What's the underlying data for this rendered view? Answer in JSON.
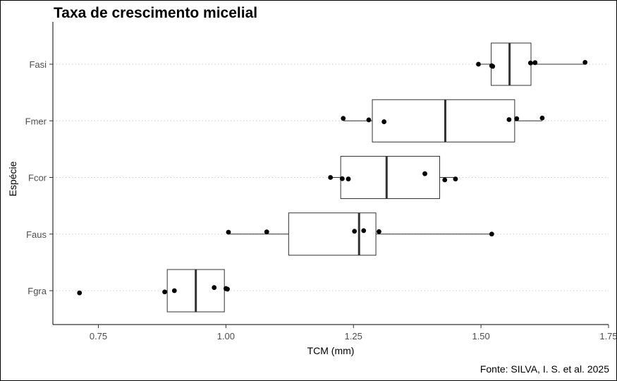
{
  "chart_data": {
    "type": "boxplot",
    "orientation": "horizontal",
    "title": "Taxa de crescimento micelial",
    "xlabel": "TCM (mm)",
    "ylabel": "Espécie",
    "caption": "Fonte: SILVA, I. S. et al. 2025",
    "xlim": [
      0.667,
      1.75
    ],
    "xticks": [
      0.75,
      1.0,
      1.25,
      1.5,
      1.75
    ],
    "xtick_labels": [
      "0.75",
      "1.00",
      "1.25",
      "1.50",
      "1.75"
    ],
    "categories": [
      "Fasi",
      "Fmer",
      "Fcor",
      "Faus",
      "Fgra"
    ],
    "grid": "horizontal dotted",
    "boxes": [
      {
        "category": "Fasi",
        "whisker_low": 1.5,
        "q1": 1.52,
        "median": 1.556,
        "q3": 1.598,
        "whisker_high": 1.704
      },
      {
        "category": "Fmer",
        "whisker_low": 1.23,
        "q1": 1.287,
        "median": 1.43,
        "q3": 1.566,
        "whisker_high": 1.62
      },
      {
        "category": "Fcor",
        "whisker_low": 1.205,
        "q1": 1.225,
        "median": 1.315,
        "q3": 1.419,
        "whisker_high": 1.45
      },
      {
        "category": "Faus",
        "whisker_low": 1.005,
        "q1": 1.123,
        "median": 1.261,
        "q3": 1.294,
        "whisker_high": 1.521
      },
      {
        "category": "Fgra",
        "whisker_low": 0.88,
        "q1": 0.885,
        "median": 0.941,
        "q3": 0.997,
        "whisker_high": 1.0
      }
    ],
    "points": [
      {
        "category": "Fasi",
        "x": 1.495,
        "jitter": 0.0
      },
      {
        "category": "Fasi",
        "x": 1.521,
        "jitter": -0.05
      },
      {
        "category": "Fasi",
        "x": 1.523,
        "jitter": -0.07
      },
      {
        "category": "Fasi",
        "x": 1.597,
        "jitter": 0.04
      },
      {
        "category": "Fasi",
        "x": 1.606,
        "jitter": 0.05
      },
      {
        "category": "Fasi",
        "x": 1.704,
        "jitter": 0.06
      },
      {
        "category": "Fmer",
        "x": 1.23,
        "jitter": 0.08
      },
      {
        "category": "Fmer",
        "x": 1.28,
        "jitter": 0.03
      },
      {
        "category": "Fmer",
        "x": 1.31,
        "jitter": -0.03
      },
      {
        "category": "Fmer",
        "x": 1.555,
        "jitter": 0.04
      },
      {
        "category": "Fmer",
        "x": 1.57,
        "jitter": 0.07
      },
      {
        "category": "Fmer",
        "x": 1.62,
        "jitter": 0.09
      },
      {
        "category": "Fcor",
        "x": 1.205,
        "jitter": 0.0
      },
      {
        "category": "Fcor",
        "x": 1.228,
        "jitter": -0.04
      },
      {
        "category": "Fcor",
        "x": 1.24,
        "jitter": -0.05
      },
      {
        "category": "Fcor",
        "x": 1.39,
        "jitter": 0.12
      },
      {
        "category": "Fcor",
        "x": 1.429,
        "jitter": -0.08
      },
      {
        "category": "Fcor",
        "x": 1.45,
        "jitter": -0.05
      },
      {
        "category": "Faus",
        "x": 1.005,
        "jitter": 0.06
      },
      {
        "category": "Faus",
        "x": 1.08,
        "jitter": 0.07
      },
      {
        "category": "Faus",
        "x": 1.252,
        "jitter": 0.09
      },
      {
        "category": "Faus",
        "x": 1.27,
        "jitter": 0.11
      },
      {
        "category": "Faus",
        "x": 1.3,
        "jitter": 0.08
      },
      {
        "category": "Faus",
        "x": 1.521,
        "jitter": 0.0
      },
      {
        "category": "Fgra",
        "x": 0.713,
        "jitter": -0.07
      },
      {
        "category": "Fgra",
        "x": 0.88,
        "jitter": -0.04
      },
      {
        "category": "Fgra",
        "x": 0.899,
        "jitter": 0.0
      },
      {
        "category": "Fgra",
        "x": 0.977,
        "jitter": 0.1
      },
      {
        "category": "Fgra",
        "x": 1.0,
        "jitter": 0.07
      },
      {
        "category": "Fgra",
        "x": 1.003,
        "jitter": 0.05
      }
    ]
  }
}
